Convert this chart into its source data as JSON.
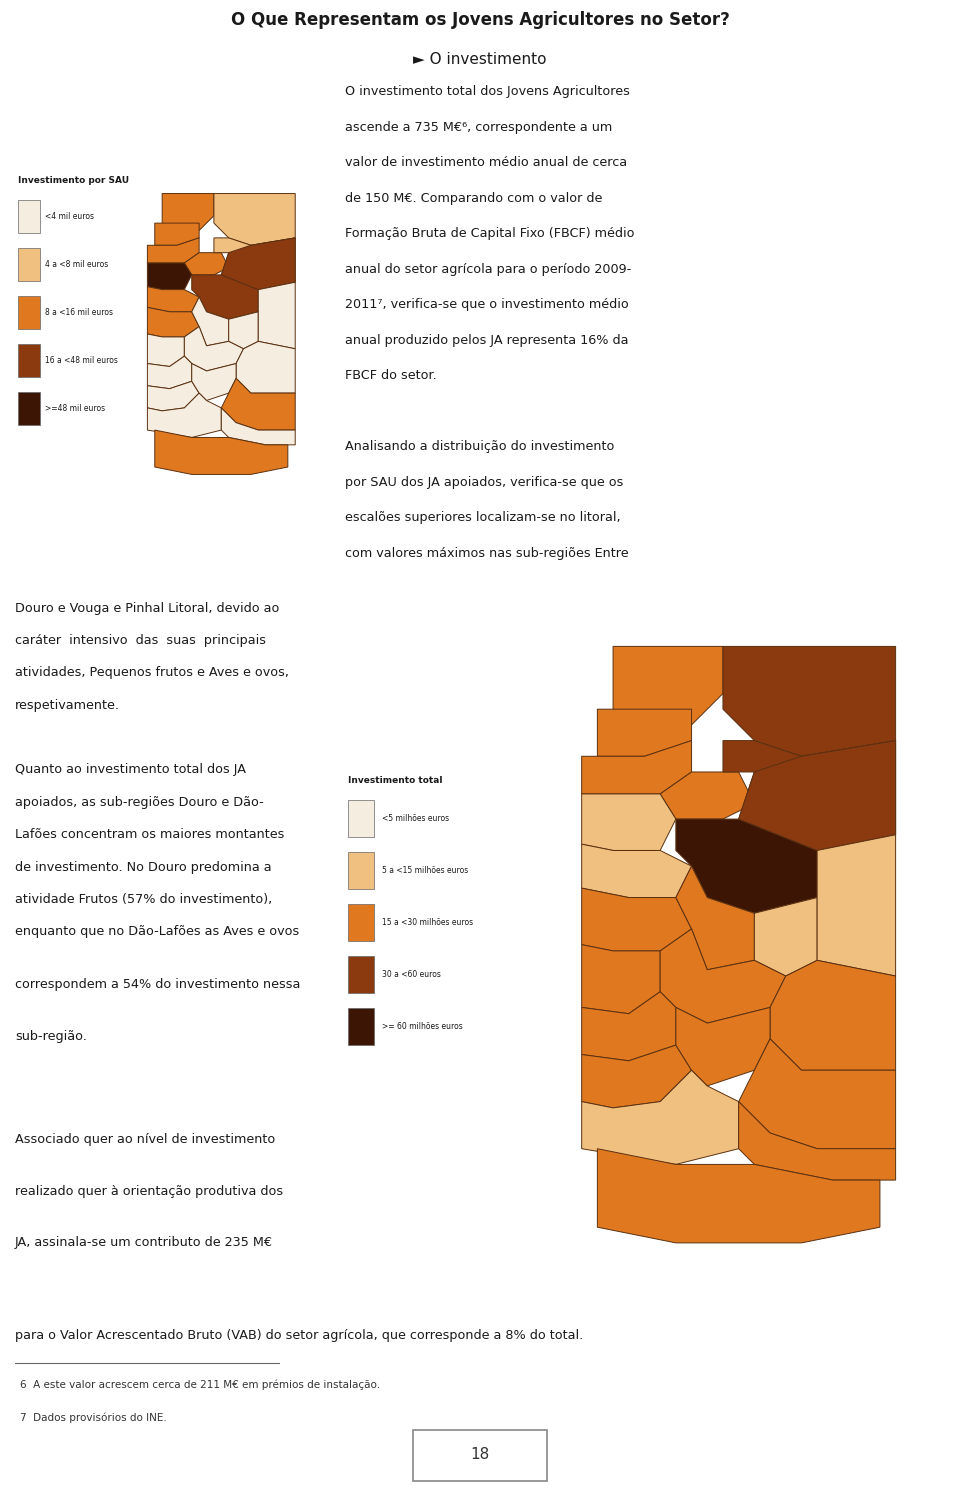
{
  "title_line1": "O Que Representam os Jovens Agricultores no Setor?",
  "title_line2": "► O investimento",
  "header_bg_color": "#c8d87c",
  "subheader_bg_color": "#dde89e",
  "header_text_color": "#1a1a1a",
  "page_bg_color": "#ffffff",
  "body_text_color": "#1a1a1a",
  "map1_legend_title": "Investimento por SAU",
  "map1_legend_items": [
    {
      "label": "<4 mil euros",
      "color": "#f5ede0"
    },
    {
      "label": "4 a <8 mil euros",
      "color": "#f0c080"
    },
    {
      "label": "8 a <16 mil euros",
      "color": "#e07820"
    },
    {
      "label": "16 a <48 mil euros",
      "color": "#8b3a10"
    },
    {
      "label": ">=48 mil euros",
      "color": "#3d1505"
    }
  ],
  "map2_legend_title": "Investimento total",
  "map2_legend_items": [
    {
      "label": "<5 milhões euros",
      "color": "#f5ede0"
    },
    {
      "label": "5 a <15 milhões euros",
      "color": "#f0c080"
    },
    {
      "label": "15 a <30 milhões euros",
      "color": "#e07820"
    },
    {
      "label": "30 a <60 euros",
      "color": "#8b3a10"
    },
    {
      "label": ">= 60 milhões euros",
      "color": "#3d1505"
    }
  ],
  "page_number": "18",
  "footnote1": "6  A este valor acrescem cerca de 211 M€ em prémios de instalação.",
  "footnote2": "7  Dados provisórios do INE.",
  "text_top_right": [
    "O investimento total dos Jovens Agricultores",
    "ascende a 735 M€⁶, correspondente a um",
    "valor de investimento médio anual de cerca",
    "de 150 M€. Comparando com o valor de",
    "Formação Bruta de Capital Fixo (FBCF) médio",
    "anual do setor agrícola para o período 2009-",
    "2011⁷, verifica-se que o investimento médio",
    "anual produzido pelos JA representa 16% da",
    "FBCF do setor.",
    "",
    "Analisando a distribuição do investimento",
    "por SAU dos JA apoiados, verifica-se que os",
    "escalões superiores localizam-se no litoral,",
    "com valores máximos nas sub-regiões Entre"
  ],
  "text_mid_left": [
    "Douro e Vouga e Pinhal Litoral, devido ao",
    "caráter  intensivo  das  suas  principais",
    "atividades, Pequenos frutos e Aves e ovos,",
    "respetivamente.",
    "",
    "Quanto ao investimento total dos JA",
    "apoiados, as sub-regiões Douro e Dão-",
    "Lafões concentram os maiores montantes",
    "de investimento. No Douro predomina a",
    "atividade Frutos (57% do investimento),",
    "enquanto que no Dão-Lafões as Aves e ovos"
  ],
  "text_lower_left": [
    "correspondem a 54% do investimento nessa",
    "sub-região.",
    "",
    "Associado quer ao nível de investimento",
    "realizado quer à orientação produtiva dos",
    "JA, assinala-se um contributo de 235 M€"
  ],
  "text_full_width": "para o Valor Acrescentado Bruto (VAB) do setor agrícola, que corresponde a 8% do total."
}
